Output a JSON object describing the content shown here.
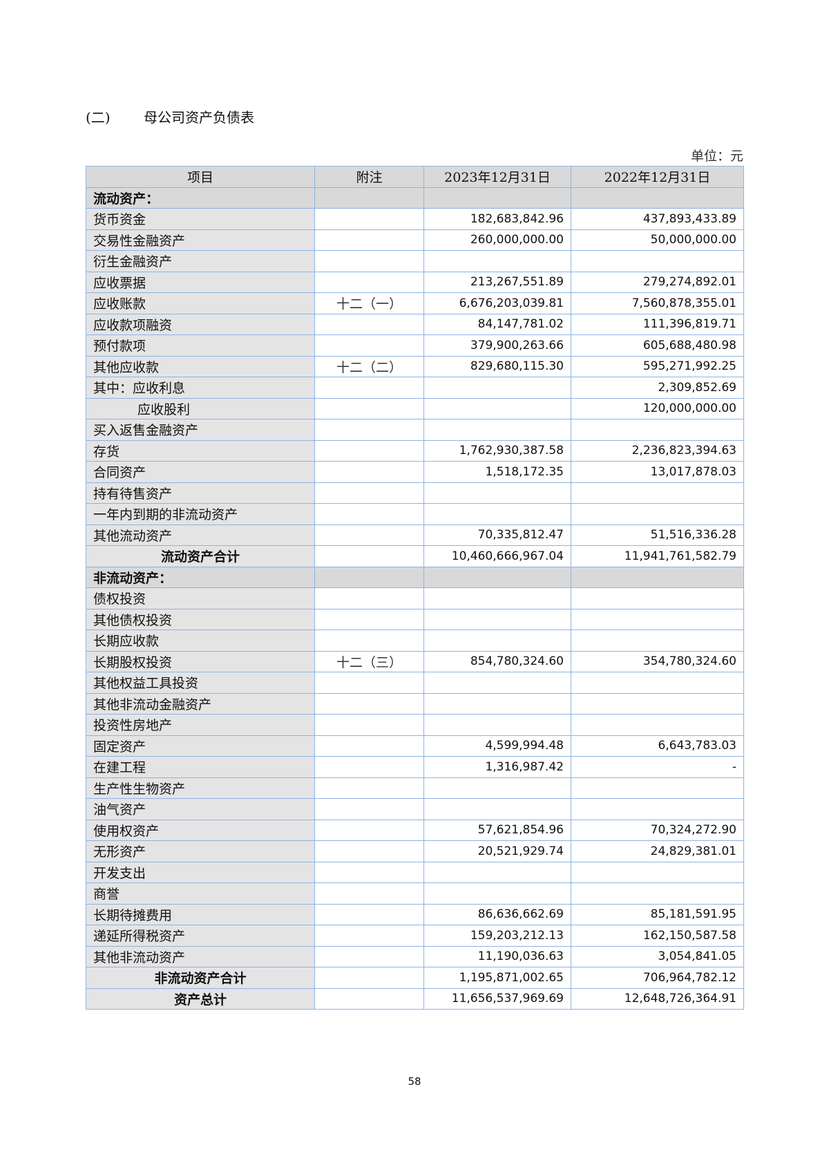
{
  "title": {
    "number": "(二)",
    "text": "母公司资产负债表"
  },
  "unit": "单位：元",
  "columns": [
    "项目",
    "附注",
    "2023年12月31日",
    "2022年12月31日"
  ],
  "rows": [
    {
      "type": "section",
      "label": "流动资产：",
      "note": "",
      "v2023": "",
      "v2022": ""
    },
    {
      "label": "货币资金",
      "note": "",
      "v2023": "182,683,842.96",
      "v2022": "437,893,433.89"
    },
    {
      "label": "交易性金融资产",
      "note": "",
      "v2023": "260,000,000.00",
      "v2022": "50,000,000.00"
    },
    {
      "label": "衍生金融资产",
      "note": "",
      "v2023": "",
      "v2022": ""
    },
    {
      "label": "应收票据",
      "note": "",
      "v2023": "213,267,551.89",
      "v2022": "279,274,892.01"
    },
    {
      "label": "应收账款",
      "note": "十二（一）",
      "v2023": "6,676,203,039.81",
      "v2022": "7,560,878,355.01"
    },
    {
      "label": "应收款项融资",
      "note": "",
      "v2023": "84,147,781.02",
      "v2022": "111,396,819.71"
    },
    {
      "label": "预付款项",
      "note": "",
      "v2023": "379,900,263.66",
      "v2022": "605,688,480.98"
    },
    {
      "label": "其他应收款",
      "note": "十二（二）",
      "v2023": "829,680,115.30",
      "v2022": "595,271,992.25"
    },
    {
      "label": "其中：应收利息",
      "note": "",
      "v2023": "",
      "v2022": "2,309,852.69"
    },
    {
      "type": "indent",
      "label": "应收股利",
      "note": "",
      "v2023": "",
      "v2022": "120,000,000.00"
    },
    {
      "label": "买入返售金融资产",
      "note": "",
      "v2023": "",
      "v2022": ""
    },
    {
      "label": "存货",
      "note": "",
      "v2023": "1,762,930,387.58",
      "v2022": "2,236,823,394.63"
    },
    {
      "label": "合同资产",
      "note": "",
      "v2023": "1,518,172.35",
      "v2022": "13,017,878.03"
    },
    {
      "label": "持有待售资产",
      "note": "",
      "v2023": "",
      "v2022": ""
    },
    {
      "label": "一年内到期的非流动资产",
      "note": "",
      "v2023": "",
      "v2022": ""
    },
    {
      "label": "其他流动资产",
      "note": "",
      "v2023": "70,335,812.47",
      "v2022": "51,516,336.28"
    },
    {
      "type": "total",
      "label": "流动资产合计",
      "note": "",
      "v2023": "10,460,666,967.04",
      "v2022": "11,941,761,582.79"
    },
    {
      "type": "section",
      "label": "非流动资产：",
      "note": "",
      "v2023": "",
      "v2022": ""
    },
    {
      "label": "债权投资",
      "note": "",
      "v2023": "",
      "v2022": ""
    },
    {
      "label": "其他债权投资",
      "note": "",
      "v2023": "",
      "v2022": ""
    },
    {
      "label": "长期应收款",
      "note": "",
      "v2023": "",
      "v2022": ""
    },
    {
      "label": "长期股权投资",
      "note": "十二（三）",
      "v2023": "854,780,324.60",
      "v2022": "354,780,324.60"
    },
    {
      "label": "其他权益工具投资",
      "note": "",
      "v2023": "",
      "v2022": ""
    },
    {
      "label": "其他非流动金融资产",
      "note": "",
      "v2023": "",
      "v2022": ""
    },
    {
      "label": "投资性房地产",
      "note": "",
      "v2023": "",
      "v2022": ""
    },
    {
      "label": "固定资产",
      "note": "",
      "v2023": "4,599,994.48",
      "v2022": "6,643,783.03"
    },
    {
      "label": "在建工程",
      "note": "",
      "v2023": "1,316,987.42",
      "v2022": "-"
    },
    {
      "label": "生产性生物资产",
      "note": "",
      "v2023": "",
      "v2022": ""
    },
    {
      "label": "油气资产",
      "note": "",
      "v2023": "",
      "v2022": ""
    },
    {
      "label": "使用权资产",
      "note": "",
      "v2023": "57,621,854.96",
      "v2022": "70,324,272.90"
    },
    {
      "label": "无形资产",
      "note": "",
      "v2023": "20,521,929.74",
      "v2022": "24,829,381.01"
    },
    {
      "label": "开发支出",
      "note": "",
      "v2023": "",
      "v2022": ""
    },
    {
      "label": "商誉",
      "note": "",
      "v2023": "",
      "v2022": ""
    },
    {
      "label": "长期待摊费用",
      "note": "",
      "v2023": "86,636,662.69",
      "v2022": "85,181,591.95"
    },
    {
      "label": "递延所得税资产",
      "note": "",
      "v2023": "159,203,212.13",
      "v2022": "162,150,587.58"
    },
    {
      "label": "其他非流动资产",
      "note": "",
      "v2023": "11,190,036.63",
      "v2022": "3,054,841.05"
    },
    {
      "type": "total",
      "label": "非流动资产合计",
      "note": "",
      "v2023": "1,195,871,002.65",
      "v2022": "706,964,782.12"
    },
    {
      "type": "total",
      "label": "资产总计",
      "note": "",
      "v2023": "11,656,537,969.69",
      "v2022": "12,648,726,364.91"
    }
  ],
  "page_number": "58",
  "colors": {
    "border": "#8db3e2",
    "header_bg": "#d9d9d9",
    "label_bg": "#e4e4e4"
  }
}
